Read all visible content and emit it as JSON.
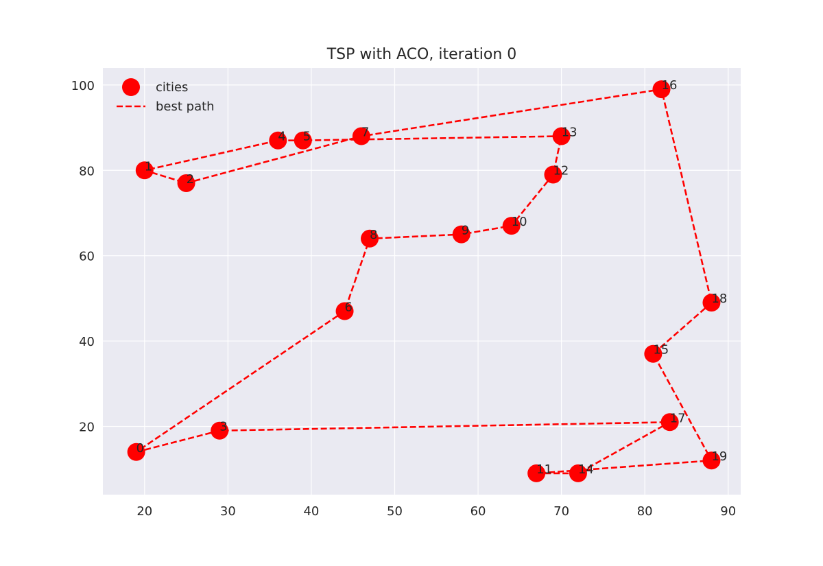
{
  "chart_data": {
    "type": "scatter",
    "title": "TSP with ACO, iteration 0",
    "xlabel": "",
    "ylabel": "",
    "xlim": [
      15,
      91.5
    ],
    "ylim": [
      4,
      104
    ],
    "x_ticks": [
      20,
      30,
      40,
      50,
      60,
      70,
      80,
      90
    ],
    "y_ticks": [
      20,
      40,
      60,
      80,
      100
    ],
    "grid": true,
    "legend_position": "top-left",
    "legend": [
      "cities",
      "best path"
    ],
    "colors": {
      "cities": "#ff0000",
      "path": "#ff0000",
      "background": "#eaeaf2"
    },
    "cities": [
      {
        "label": "0",
        "x": 19,
        "y": 14
      },
      {
        "label": "1",
        "x": 20,
        "y": 80
      },
      {
        "label": "2",
        "x": 25,
        "y": 77
      },
      {
        "label": "3",
        "x": 29,
        "y": 19
      },
      {
        "label": "4",
        "x": 36,
        "y": 87
      },
      {
        "label": "5",
        "x": 39,
        "y": 87
      },
      {
        "label": "6",
        "x": 44,
        "y": 47
      },
      {
        "label": "7",
        "x": 46,
        "y": 88
      },
      {
        "label": "8",
        "x": 47,
        "y": 64
      },
      {
        "label": "9",
        "x": 58,
        "y": 65
      },
      {
        "label": "10",
        "x": 64,
        "y": 67
      },
      {
        "label": "11",
        "x": 67,
        "y": 9
      },
      {
        "label": "12",
        "x": 69,
        "y": 79
      },
      {
        "label": "13",
        "x": 70,
        "y": 88
      },
      {
        "label": "14",
        "x": 72,
        "y": 9
      },
      {
        "label": "15",
        "x": 81,
        "y": 37
      },
      {
        "label": "16",
        "x": 82,
        "y": 99
      },
      {
        "label": "17",
        "x": 83,
        "y": 21
      },
      {
        "label": "18",
        "x": 88,
        "y": 49
      },
      {
        "label": "19",
        "x": 88,
        "y": 12
      }
    ],
    "best_path": [
      0,
      3,
      17,
      14,
      11,
      19,
      15,
      18,
      16,
      7,
      2,
      1,
      4,
      5,
      13,
      12,
      10,
      9,
      8,
      6,
      0
    ]
  }
}
